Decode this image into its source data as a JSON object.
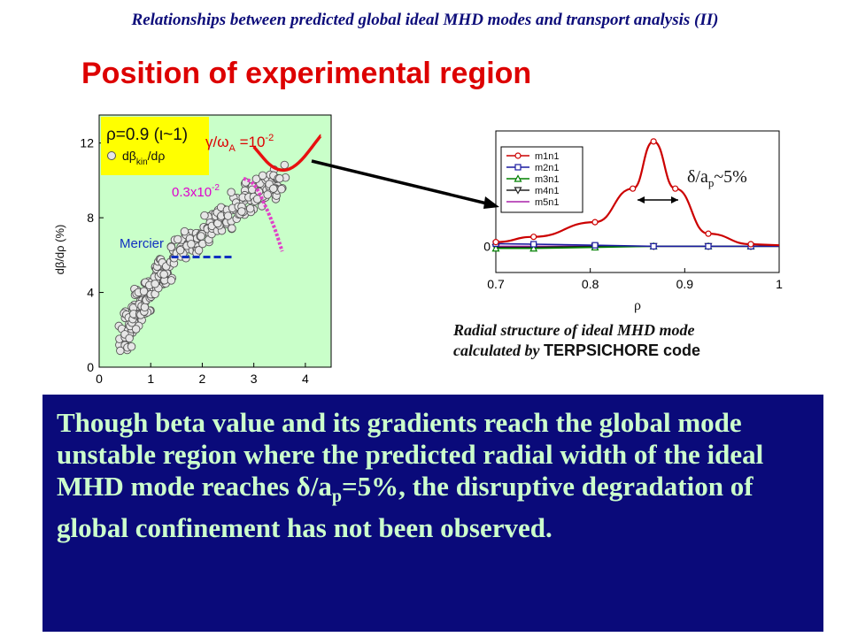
{
  "header": "Relationships between predicted global ideal MHD modes and transport analysis (II)",
  "title": "Position of experimental region",
  "caption": {
    "line1": "Radial structure of ideal MHD mode",
    "line2_prefix": "calculated by ",
    "line2_code": "TERPSICHORE code"
  },
  "conclusion": {
    "text1": "Though beta value and its gradients reach the global mode unstable region where the predicted radial width of the ideal MHD mode reaches ",
    "symbol": "δ/a",
    "sub": "p",
    "text2": "=5%, the disruptive degradation of global confinement has not been observed."
  },
  "colors": {
    "title": "#dd0000",
    "box_bg": "#0a0a7a",
    "box_text": "#ccffcc",
    "header": "#0d0d7a"
  },
  "chart_data": [
    {
      "type": "scatter",
      "title": "",
      "xlabel": "",
      "ylabel": "dβ/dρ (%)",
      "xlim": [
        0,
        4.5
      ],
      "ylim": [
        0,
        13.5
      ],
      "xticks": [
        "0",
        "1",
        "2",
        "3",
        "4"
      ],
      "yticks": [
        "0",
        "4",
        "8",
        "12"
      ],
      "legend": {
        "line1": "ρ=0.9 (ι~1)",
        "line2": "dβ",
        "line2_sub": "kin",
        "line2_tail": "/dρ"
      },
      "annotations": {
        "growth_label": "γ/ω",
        "growth_sub": "A",
        "growth_eq": " =10",
        "growth_exp": "-2",
        "pink_label": "0.3x10",
        "pink_exp": "-2",
        "mercier": "Mercier"
      },
      "red_curve": {
        "x": [
          3.0,
          3.4,
          3.8,
          4.3
        ],
        "y": [
          11.8,
          10.5,
          10.6,
          12.4
        ]
      },
      "pink_curve": {
        "x": [
          2.8,
          3.0,
          3.2,
          3.4,
          3.55
        ],
        "y": [
          10.1,
          9.9,
          8.8,
          7.5,
          6.2
        ]
      },
      "mercier_line": {
        "x": [
          1.4,
          2.6
        ],
        "y": [
          5.9,
          5.9
        ]
      },
      "scatter_points": {
        "x": [
          0.5,
          0.6,
          0.7,
          0.8,
          0.9,
          1.0,
          1.1,
          1.2,
          1.3,
          1.5,
          1.7,
          1.9,
          2.1,
          2.3,
          2.5,
          2.7,
          2.9,
          3.1,
          3.3,
          3.5
        ],
        "y": [
          1.6,
          2.2,
          2.8,
          3.4,
          3.6,
          3.9,
          4.6,
          5.0,
          5.4,
          6.1,
          6.5,
          6.9,
          7.4,
          7.7,
          8.1,
          8.6,
          9.1,
          9.4,
          9.8,
          10.1
        ],
        "color": "#e6e6e6"
      }
    },
    {
      "type": "line",
      "title": "",
      "xlabel": "ρ",
      "ylabel": "",
      "xlim": [
        0.7,
        1.0
      ],
      "xticks": [
        "0.7",
        "0.8",
        "0.9",
        "1"
      ],
      "yticks": [
        "0"
      ],
      "annotation": {
        "symbol": "δ/a",
        "sub": "p",
        "tail": "~5%"
      },
      "series": [
        {
          "name": "m1n1",
          "color": "#cc0000",
          "marker": "circle",
          "x": [
            0.7,
            0.74,
            0.805,
            0.845,
            0.867,
            0.89,
            0.925,
            0.97
          ],
          "y": [
            0.04,
            0.09,
            0.23,
            0.55,
            1.0,
            0.55,
            0.12,
            0.02
          ]
        },
        {
          "name": "m2n1",
          "color": "#1a1aa0",
          "marker": "square",
          "x": [
            0.7,
            0.74,
            0.805,
            0.867,
            0.925,
            0.97
          ],
          "y": [
            0.025,
            0.02,
            0.01,
            0.0,
            0.0,
            0.0
          ]
        },
        {
          "name": "m3n1",
          "color": "#008000",
          "marker": "triangle-up",
          "x": [
            0.7,
            0.74,
            0.805,
            0.867,
            0.925,
            0.97
          ],
          "y": [
            -0.02,
            -0.02,
            -0.01,
            0.0,
            0.0,
            0.0
          ]
        },
        {
          "name": "m4n1",
          "color": "#222222",
          "marker": "triangle-down",
          "x": [
            0.7,
            0.74,
            0.805,
            0.867,
            0.925,
            0.97
          ],
          "y": [
            -0.01,
            -0.01,
            0.0,
            0.0,
            0.0,
            0.0
          ]
        },
        {
          "name": "m5n1",
          "color": "#aa22aa",
          "marker": "none",
          "x": [
            0.7,
            0.74,
            0.805,
            0.867,
            0.925,
            0.97
          ],
          "y": [
            0.0,
            0.0,
            0.0,
            0.0,
            0.0,
            0.0
          ]
        }
      ],
      "ylim": [
        -0.25,
        1.1
      ]
    }
  ]
}
